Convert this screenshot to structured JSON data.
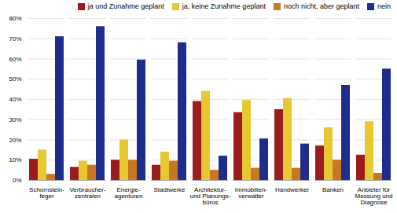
{
  "chart_data": {
    "type": "bar",
    "categories": [
      "Schornstein-\nfeger",
      "Verbraucher-\nzentralen",
      "Energie-\nagenturen",
      "Stadtwerke",
      "Architektur-\nund Planungs-\nbüros",
      "Immobilien-\nverwalter",
      "Handwerker",
      "Banken",
      "Anbieter für\nMessung und\nDiagnose"
    ],
    "series": [
      {
        "name": "ja und Zunahme geplant",
        "color": "#9b1c1c",
        "values": [
          10.5,
          6.5,
          10,
          7.5,
          39,
          33.5,
          35,
          17,
          12.5
        ]
      },
      {
        "name": "ja, keine Zunahme geplant",
        "color": "#e8c832",
        "values": [
          15,
          9.5,
          20,
          14,
          44,
          39.5,
          40.5,
          26,
          29
        ]
      },
      {
        "name": "noch nicht, aber geplant",
        "color": "#c87820",
        "values": [
          3,
          7.5,
          10,
          9.5,
          5,
          6,
          6,
          10,
          3.5
        ]
      },
      {
        "name": "nein",
        "color": "#1e2d8c",
        "values": [
          71,
          76,
          59.5,
          68,
          12,
          20.5,
          18,
          47,
          55
        ]
      }
    ],
    "ylim": [
      0,
      80
    ],
    "yticks": [
      {
        "value": 0,
        "label": "0%"
      },
      {
        "value": 10,
        "label": "10%"
      },
      {
        "value": 20,
        "label": "20%"
      },
      {
        "value": 30,
        "label": "30%"
      },
      {
        "value": 40,
        "label": "40%"
      },
      {
        "value": 50,
        "label": "50%"
      },
      {
        "value": 60,
        "label": "60%"
      },
      {
        "value": 70,
        "label": "70%"
      },
      {
        "value": 80,
        "label": "80%"
      }
    ],
    "grid": true,
    "legend": "upper right"
  }
}
